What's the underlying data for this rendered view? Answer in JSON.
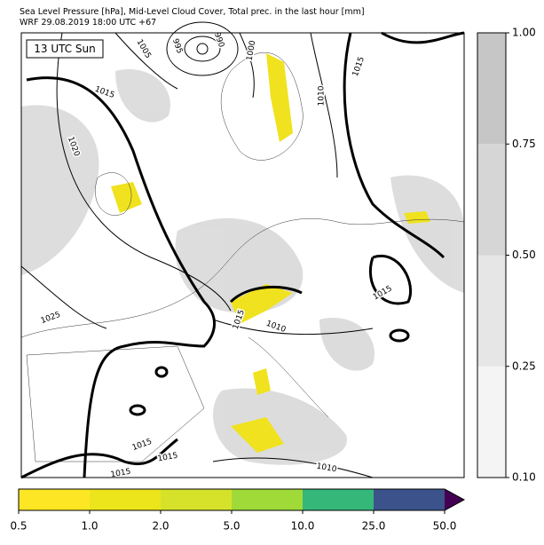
{
  "header": {
    "line1": "Sea Level Pressure [hPa], Mid-Level Cloud Cover, Total prec. in the last hour [mm]",
    "line2": "WRF 29.08.2019 18:00 UTC +67"
  },
  "map": {
    "time_label": "13 UTC Sun",
    "contour_labels": [
      "1005",
      "995",
      "990",
      "1000",
      "1010",
      "1015",
      "1015",
      "1020",
      "1025",
      "1015",
      "1010",
      "1015",
      "1015",
      "1015",
      "1015",
      "1010"
    ]
  },
  "cloud_colorbar": {
    "ticks": [
      {
        "value": 0.1,
        "label": "0.10"
      },
      {
        "value": 0.25,
        "label": "0.25"
      },
      {
        "value": 0.5,
        "label": "0.50"
      },
      {
        "value": 0.75,
        "label": "0.75"
      },
      {
        "value": 1,
        "label": "1.00"
      }
    ],
    "colors": [
      "#f4f4f4",
      "#e6e6e6",
      "#d6d6d6",
      "#c6c6c6"
    ]
  },
  "precip_colorbar": {
    "ticks": [
      {
        "value": 0.5,
        "label": "0.5"
      },
      {
        "value": 1,
        "label": "1.0"
      },
      {
        "value": 2,
        "label": "2.0"
      },
      {
        "value": 5,
        "label": "5.0"
      },
      {
        "value": 10,
        "label": "10.0"
      },
      {
        "value": 25,
        "label": "25.0"
      },
      {
        "value": 50,
        "label": "50.0"
      }
    ],
    "colors": [
      "#fde725",
      "#ece51b",
      "#d6e22a",
      "#a0da39",
      "#35b779",
      "#3b528b"
    ],
    "extend_color": "#440154"
  }
}
